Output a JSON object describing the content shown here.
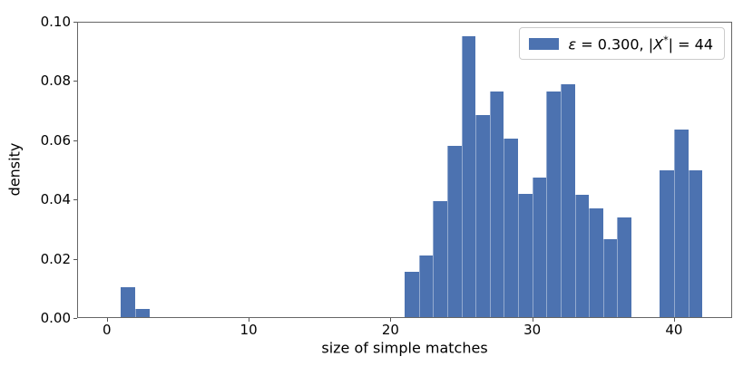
{
  "figure": {
    "background": "#ffffff",
    "axis_color": "#666666",
    "tick_color": "#555555",
    "text_color": "#000000"
  },
  "chart_data": {
    "type": "bar",
    "subtype": "histogram",
    "title": "",
    "xlabel": "size of simple matches",
    "ylabel": "density",
    "xlim": [
      -2.1,
      44.1
    ],
    "ylim": [
      0.0,
      0.1
    ],
    "grid": false,
    "bar_color": "#4c72b0",
    "bar_separator_color": "rgba(255,255,255,0.4)",
    "xtick_values": [
      0,
      10,
      20,
      30,
      40
    ],
    "xtick_labels": [
      "0",
      "10",
      "20",
      "30",
      "40"
    ],
    "ytick_values": [
      0.0,
      0.02,
      0.04,
      0.06,
      0.08,
      0.1
    ],
    "ytick_labels": [
      "0.00",
      "0.02",
      "0.04",
      "0.06",
      "0.08",
      "0.10"
    ],
    "legend": {
      "position": "upper right",
      "swatch_color": "#4c72b0",
      "label": "ε = 0.300, |X*| = 44",
      "parts": [
        {
          "text": "ε",
          "style": "italic"
        },
        {
          "text": " = 0.300, |",
          "style": "normal"
        },
        {
          "text": "X",
          "style": "italic"
        },
        {
          "text": "*",
          "style": "sup"
        },
        {
          "text": "| = 44",
          "style": "normal"
        }
      ]
    },
    "bins": [
      {
        "x0": 1,
        "x1": 2,
        "density": 0.0105
      },
      {
        "x0": 2,
        "x1": 3,
        "density": 0.003
      },
      {
        "x0": 21,
        "x1": 22,
        "density": 0.0155
      },
      {
        "x0": 22,
        "x1": 23,
        "density": 0.021
      },
      {
        "x0": 23,
        "x1": 24,
        "density": 0.0395
      },
      {
        "x0": 24,
        "x1": 25,
        "density": 0.058
      },
      {
        "x0": 25,
        "x1": 26,
        "density": 0.095
      },
      {
        "x0": 26,
        "x1": 27,
        "density": 0.0685
      },
      {
        "x0": 27,
        "x1": 28,
        "density": 0.0765
      },
      {
        "x0": 28,
        "x1": 29,
        "density": 0.0605
      },
      {
        "x0": 29,
        "x1": 30,
        "density": 0.042
      },
      {
        "x0": 30,
        "x1": 31,
        "density": 0.0475
      },
      {
        "x0": 31,
        "x1": 32,
        "density": 0.0765
      },
      {
        "x0": 32,
        "x1": 33,
        "density": 0.079
      },
      {
        "x0": 33,
        "x1": 34,
        "density": 0.0415
      },
      {
        "x0": 34,
        "x1": 35,
        "density": 0.037
      },
      {
        "x0": 35,
        "x1": 36,
        "density": 0.0265
      },
      {
        "x0": 36,
        "x1": 37,
        "density": 0.034
      },
      {
        "x0": 39,
        "x1": 40,
        "density": 0.05
      },
      {
        "x0": 40,
        "x1": 41,
        "density": 0.0635
      },
      {
        "x0": 41,
        "x1": 42,
        "density": 0.05
      }
    ]
  }
}
